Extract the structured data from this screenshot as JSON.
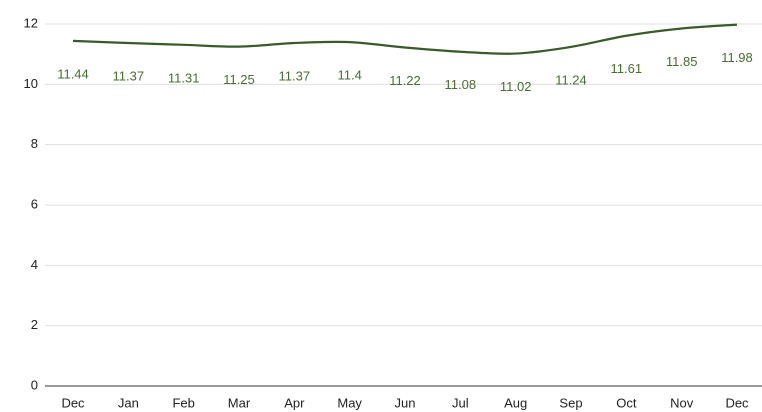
{
  "chart_data": {
    "type": "line",
    "categories": [
      "Dec",
      "Jan",
      "Feb",
      "Mar",
      "Apr",
      "May",
      "Jun",
      "Jul",
      "Aug",
      "Sep",
      "Oct",
      "Nov",
      "Dec"
    ],
    "series": [
      {
        "color": "#3b5a2b",
        "values": [
          11.44,
          11.37,
          11.31,
          11.25,
          11.37,
          11.4,
          11.22,
          11.08,
          11.02,
          11.24,
          11.61,
          11.85,
          11.98
        ]
      }
    ],
    "ylim": [
      0,
      12
    ],
    "yticks": [
      0,
      2,
      4,
      6,
      8,
      10,
      12
    ],
    "grid": true,
    "smooth": true,
    "data_labels": true
  }
}
